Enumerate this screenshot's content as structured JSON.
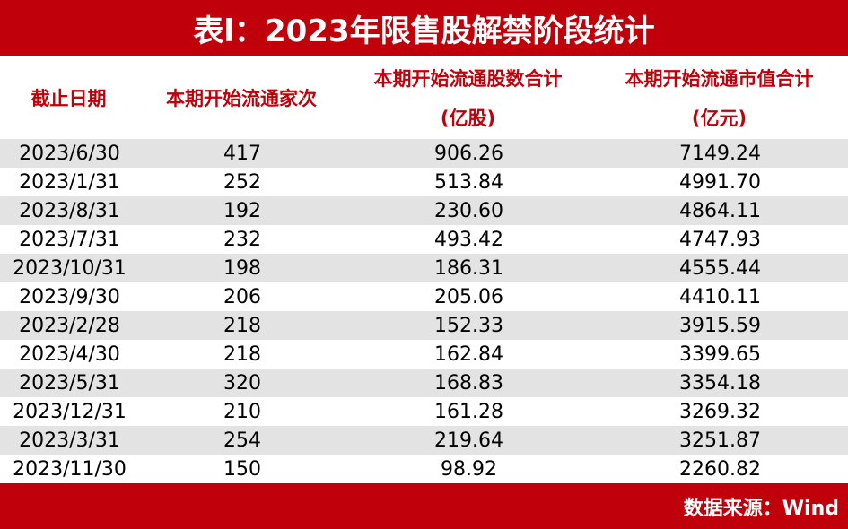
{
  "header": {
    "title": "表l：2023年限售股解禁阶段统计"
  },
  "table": {
    "columns": [
      [
        "截止日期"
      ],
      [
        "本期开始流通家次"
      ],
      [
        "本期开始流通股数合计",
        "(亿股)"
      ],
      [
        "本期开始流通市值合计",
        "(亿元)"
      ]
    ],
    "rows": [
      [
        "2023/6/30",
        "417",
        "906.26",
        "7149.24"
      ],
      [
        "2023/1/31",
        "252",
        "513.84",
        "4991.70"
      ],
      [
        "2023/8/31",
        "192",
        "230.60",
        "4864.11"
      ],
      [
        "2023/7/31",
        "232",
        "493.42",
        "4747.93"
      ],
      [
        "2023/10/31",
        "198",
        "186.31",
        "4555.44"
      ],
      [
        "2023/9/30",
        "206",
        "205.06",
        "4410.11"
      ],
      [
        "2023/2/28",
        "218",
        "152.33",
        "3915.59"
      ],
      [
        "2023/4/30",
        "218",
        "162.84",
        "3399.65"
      ],
      [
        "2023/5/31",
        "320",
        "168.83",
        "3354.18"
      ],
      [
        "2023/12/31",
        "210",
        "161.28",
        "3269.32"
      ],
      [
        "2023/3/31",
        "254",
        "219.64",
        "3251.87"
      ],
      [
        "2023/11/30",
        "150",
        "98.92",
        "2260.82"
      ]
    ]
  },
  "footer": {
    "source": "数据来源：Wind"
  }
}
